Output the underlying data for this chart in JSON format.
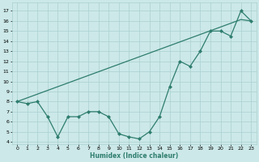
{
  "xlabel": "Humidex (Indice chaleur)",
  "x_data": [
    0,
    1,
    2,
    3,
    4,
    5,
    6,
    7,
    8,
    9,
    10,
    11,
    12,
    13,
    14,
    15,
    16,
    17,
    18,
    19,
    20,
    21,
    22,
    23
  ],
  "y_data": [
    8,
    7.8,
    8,
    6.5,
    4.5,
    6.5,
    6.5,
    7,
    7,
    6.5,
    4.8,
    4.5,
    4.3,
    5,
    6.5,
    9.5,
    12,
    11.5,
    13,
    15,
    15,
    14.5,
    17,
    16
  ],
  "y_trend": [
    8.0,
    8.37,
    8.74,
    9.11,
    9.48,
    9.85,
    10.22,
    10.59,
    10.96,
    11.33,
    11.7,
    12.07,
    12.44,
    12.81,
    13.18,
    13.55,
    13.92,
    14.29,
    14.66,
    15.03,
    15.4,
    15.77,
    16.14,
    16.0
  ],
  "line_color": "#2e7d6e",
  "bg_color": "#cce8e8",
  "grid_color": "#aad0d0",
  "xlim": [
    -0.5,
    23.5
  ],
  "ylim": [
    3.8,
    17.8
  ],
  "xticks": [
    0,
    1,
    2,
    3,
    4,
    5,
    6,
    7,
    8,
    9,
    10,
    11,
    12,
    13,
    14,
    15,
    16,
    17,
    18,
    19,
    20,
    21,
    22,
    23
  ],
  "yticks": [
    4,
    5,
    6,
    7,
    8,
    9,
    10,
    11,
    12,
    13,
    14,
    15,
    16,
    17
  ],
  "marker": "D",
  "markersize": 2.0,
  "linewidth": 0.9
}
